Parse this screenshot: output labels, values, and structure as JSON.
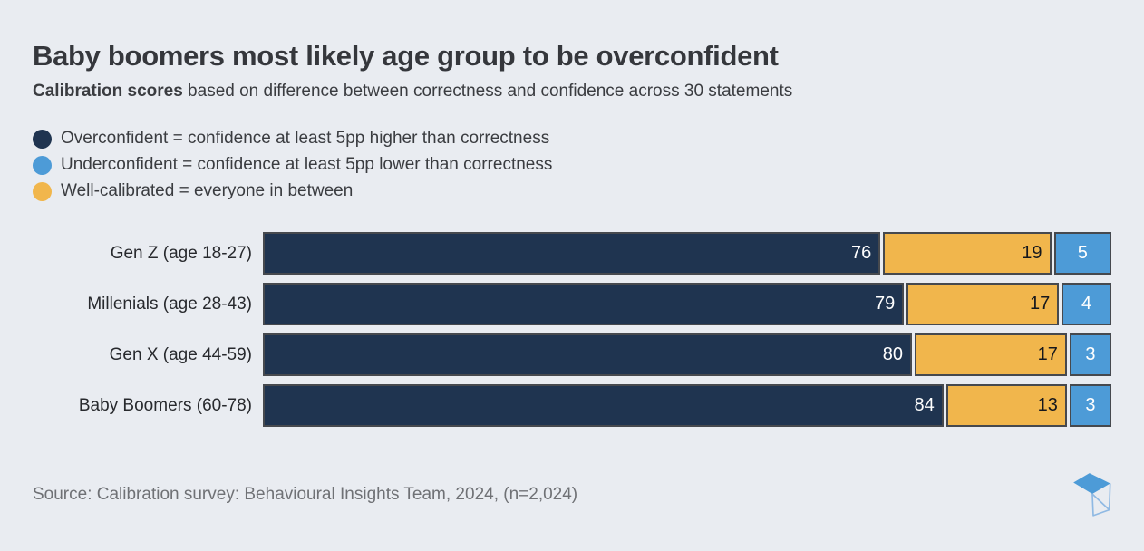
{
  "title": "Baby boomers most likely age group to be overconfident",
  "subtitle": {
    "bold": "Calibration scores",
    "rest": " based on difference between correctness and confidence across 30 statements"
  },
  "legend": [
    {
      "name": "overconfident",
      "label": "Overconfident = confidence at least 5pp higher than correctness",
      "color": "#1F3450"
    },
    {
      "name": "underconfident",
      "label": "Underconfident = confidence at least 5pp lower than correctness",
      "color": "#4D9BD7"
    },
    {
      "name": "well-calibrated",
      "label": "Well-calibrated = everyone in between",
      "color": "#F1B64C"
    }
  ],
  "source": "Source: Calibration survey: Behavioural Insights Team, 2024, (n=2,024)",
  "colors": {
    "background": "#E9ECF1",
    "bar_border": "#46494E",
    "title_text": "#35373C",
    "source_text": "#6F7175"
  },
  "logo": {
    "label": "bit-cube-logo",
    "fill": "#4D9BD7",
    "stroke": "#8FB9E3"
  },
  "chart_data": {
    "type": "bar",
    "orientation": "horizontal",
    "stacked": true,
    "title": "Baby boomers most likely age group to be overconfident",
    "xlabel": "",
    "ylabel": "",
    "xlim": [
      0,
      100
    ],
    "grid": false,
    "legend_position": "top-left",
    "categories": [
      "Gen Z (age 18-27)",
      "Millenials (age 28-43)",
      "Gen X (age 44-59)",
      "Baby Boomers (60-78)"
    ],
    "series": [
      {
        "name": "Overconfident",
        "color": "#1F3450",
        "value_color": "#FFFFFF",
        "value_align": "flex-end",
        "values": [
          76,
          79,
          80,
          84
        ]
      },
      {
        "name": "Well-calibrated",
        "color": "#F1B64C",
        "value_color": "#16181C",
        "value_align": "flex-end",
        "values": [
          19,
          17,
          17,
          13
        ]
      },
      {
        "name": "Underconfident",
        "color": "#4D9BD7",
        "value_color": "#FFFFFF",
        "value_align": "center",
        "values": [
          5,
          4,
          3,
          3
        ]
      }
    ]
  }
}
